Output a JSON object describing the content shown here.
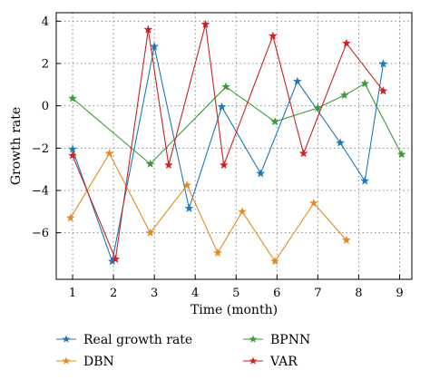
{
  "chart_data": {
    "type": "line",
    "xlabel": "Time (month)",
    "ylabel": "Growth rate",
    "xlim": [
      0.6,
      9.3
    ],
    "ylim": [
      -8.2,
      4.4
    ],
    "xticks": [
      1,
      2,
      3,
      4,
      5,
      6,
      7,
      8,
      9
    ],
    "yticks": [
      -6,
      -4,
      -2,
      0,
      2,
      4
    ],
    "grid": true,
    "legend_position": "bottom",
    "series": [
      {
        "name": "Real growth rate",
        "color": "#1f77b4",
        "marker": "star",
        "points": [
          [
            1.0,
            -2.05
          ],
          [
            1.97,
            -7.35
          ],
          [
            3.0,
            2.8
          ],
          [
            3.85,
            -4.85
          ],
          [
            4.65,
            -0.05
          ],
          [
            5.6,
            -3.2
          ],
          [
            6.5,
            1.15
          ],
          [
            7.55,
            -1.75
          ],
          [
            8.15,
            -3.55
          ],
          [
            8.6,
            1.98
          ]
        ]
      },
      {
        "name": "DBN",
        "color": "#e6891f",
        "marker": "star",
        "points": [
          [
            0.95,
            -5.3
          ],
          [
            1.9,
            -2.25
          ],
          [
            2.9,
            -6.0
          ],
          [
            3.8,
            -3.75
          ],
          [
            4.55,
            -6.95
          ],
          [
            5.15,
            -5.0
          ],
          [
            5.95,
            -7.35
          ],
          [
            6.9,
            -4.6
          ],
          [
            7.7,
            -6.35
          ]
        ]
      },
      {
        "name": "BPNN",
        "color": "#3a9a3a",
        "marker": "star",
        "points": [
          [
            1.0,
            0.35
          ],
          [
            2.9,
            -2.75
          ],
          [
            4.75,
            0.9
          ],
          [
            5.95,
            -0.75
          ],
          [
            7.0,
            -0.1
          ],
          [
            7.65,
            0.5
          ],
          [
            8.15,
            1.05
          ],
          [
            9.05,
            -2.3
          ]
        ]
      },
      {
        "name": "VAR",
        "color": "#cc2222",
        "marker": "star",
        "points": [
          [
            1.0,
            -2.35
          ],
          [
            2.05,
            -7.25
          ],
          [
            2.85,
            3.6
          ],
          [
            3.35,
            -2.8
          ],
          [
            4.25,
            3.85
          ],
          [
            4.7,
            -2.8
          ],
          [
            5.9,
            3.3
          ],
          [
            6.65,
            -2.25
          ],
          [
            7.7,
            2.95
          ],
          [
            8.6,
            0.7
          ]
        ]
      }
    ]
  }
}
